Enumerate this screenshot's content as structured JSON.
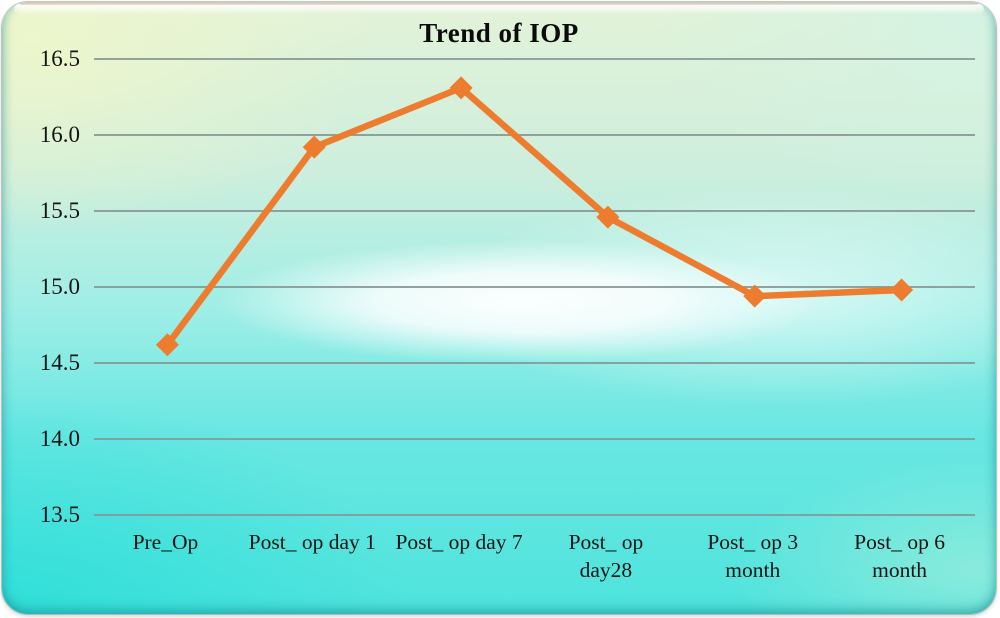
{
  "chart_data": {
    "type": "line",
    "title": "Trend of IOP",
    "categories": [
      "Pre_Op",
      "Post_ op day 1",
      "Post_ op day 7",
      "Post_ op day28",
      "Post_ op 3 month",
      "Post_ op 6 month"
    ],
    "category_display": [
      "Pre_Op",
      "Post_ op day 1",
      "Post_ op day 7",
      "Post_ op\nday28",
      "Post_ op 3\nmonth",
      "Post_ op 6\nmonth"
    ],
    "series": [
      {
        "name": "IOP",
        "values": [
          14.62,
          15.92,
          16.31,
          15.46,
          14.94,
          14.98
        ]
      }
    ],
    "xlabel": "",
    "ylabel": "",
    "ylim": [
      13.5,
      16.5
    ],
    "ytick_step": 0.5,
    "yticks": [
      16.5,
      16.0,
      15.5,
      15.0,
      14.5,
      14.0,
      13.5
    ],
    "ytick_labels": [
      "16.5",
      "16.0",
      "15.5",
      "15.0",
      "14.5",
      "14.0",
      "13.5"
    ],
    "grid": "horizontal",
    "legend": "none",
    "marker": "diamond",
    "line_color": "#ee7c2e",
    "marker_color": "#ee7c2e",
    "grid_color": "#879694",
    "text_color": "#141414",
    "title_color": "#0b0b0b"
  }
}
